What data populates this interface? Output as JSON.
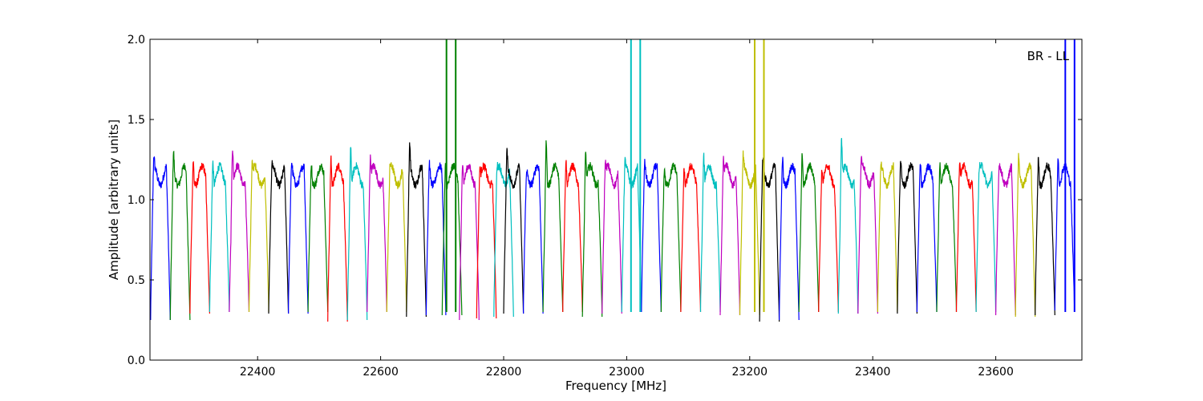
{
  "chart_data": {
    "type": "line",
    "title": "",
    "annotation": "BR - LL",
    "xlabel": "Frequency [MHz]",
    "ylabel": "Amplitude [arbitrary units]",
    "xlim": [
      22225,
      23740
    ],
    "ylim": [
      0.0,
      2.0
    ],
    "xticks": [
      22400,
      22600,
      22800,
      23000,
      23200,
      23400,
      23600
    ],
    "xtick_labels": [
      "22400",
      "22600",
      "22800",
      "23000",
      "23200",
      "23400",
      "23600"
    ],
    "yticks": [
      0.0,
      0.5,
      1.0,
      1.5,
      2.0
    ],
    "ytick_labels": [
      "0.0",
      "0.5",
      "1.0",
      "1.5",
      "2.0"
    ],
    "grid": false,
    "legend": "none",
    "color_cycle": [
      "#0000ff",
      "#008000",
      "#ff0000",
      "#00bfbf",
      "#bf00bf",
      "#bfbf00",
      "#000000"
    ],
    "passband_width_mhz": 32,
    "series": [
      {
        "start": 22226,
        "color": "#0000ff",
        "peak": 1.28,
        "floor": 0.25
      },
      {
        "start": 22258,
        "color": "#008000",
        "peak": 1.31,
        "floor": 0.25
      },
      {
        "start": 22290,
        "color": "#ff0000",
        "peak": 1.25,
        "floor": 0.29
      },
      {
        "start": 22322,
        "color": "#00bfbf",
        "peak": 1.24,
        "floor": 0.3
      },
      {
        "start": 22354,
        "color": "#bf00bf",
        "peak": 1.34,
        "floor": 0.3
      },
      {
        "start": 22386,
        "color": "#bfbf00",
        "peak": 1.24,
        "floor": 0.3
      },
      {
        "start": 22418,
        "color": "#000000",
        "peak": 1.23,
        "floor": 0.29
      },
      {
        "start": 22450,
        "color": "#0000ff",
        "peak": 1.24,
        "floor": 0.29
      },
      {
        "start": 22482,
        "color": "#008000",
        "peak": 1.23,
        "floor": 0.3
      },
      {
        "start": 22514,
        "color": "#ff0000",
        "peak": 1.27,
        "floor": 0.24
      },
      {
        "start": 22546,
        "color": "#00bfbf",
        "peak": 1.34,
        "floor": 0.25
      },
      {
        "start": 22578,
        "color": "#bf00bf",
        "peak": 1.27,
        "floor": 0.3
      },
      {
        "start": 22610,
        "color": "#bfbf00",
        "peak": 1.22,
        "floor": 0.3
      },
      {
        "start": 22642,
        "color": "#000000",
        "peak": 1.36,
        "floor": 0.27
      },
      {
        "start": 22674,
        "color": "#0000ff",
        "peak": 1.24,
        "floor": 0.28
      },
      {
        "start": 22700,
        "color": "#008000",
        "peak": 1.22,
        "floor": 0.28
      },
      {
        "start": 22728,
        "color": "#bf00bf",
        "peak": 1.25,
        "floor": 0.25
      },
      {
        "start": 22756,
        "color": "#ff0000",
        "peak": 1.21,
        "floor": 0.26
      },
      {
        "start": 22784,
        "color": "#00bfbf",
        "peak": 1.22,
        "floor": 0.27
      },
      {
        "start": 22800,
        "color": "#000000",
        "peak": 1.31,
        "floor": 0.29
      },
      {
        "start": 22832,
        "color": "#0000ff",
        "peak": 1.19,
        "floor": 0.29
      },
      {
        "start": 22864,
        "color": "#008000",
        "peak": 1.39,
        "floor": 0.3
      },
      {
        "start": 22896,
        "color": "#ff0000",
        "peak": 1.26,
        "floor": 0.3
      },
      {
        "start": 22928,
        "color": "#008000",
        "peak": 1.3,
        "floor": 0.27
      },
      {
        "start": 22960,
        "color": "#bf00bf",
        "peak": 1.24,
        "floor": 0.29
      },
      {
        "start": 22992,
        "color": "#00bfbf",
        "peak": 1.25,
        "floor": 0.3
      },
      {
        "start": 23024,
        "color": "#0000ff",
        "peak": 1.24,
        "floor": 0.3
      },
      {
        "start": 23056,
        "color": "#008000",
        "peak": 1.2,
        "floor": 0.3
      },
      {
        "start": 23088,
        "color": "#ff0000",
        "peak": 1.19,
        "floor": 0.3
      },
      {
        "start": 23120,
        "color": "#00bfbf",
        "peak": 1.28,
        "floor": 0.3
      },
      {
        "start": 23152,
        "color": "#bf00bf",
        "peak": 1.26,
        "floor": 0.28
      },
      {
        "start": 23184,
        "color": "#bfbf00",
        "peak": 1.29,
        "floor": 0.28
      },
      {
        "start": 23216,
        "color": "#000000",
        "peak": 1.27,
        "floor": 0.24
      },
      {
        "start": 23248,
        "color": "#0000ff",
        "peak": 1.27,
        "floor": 0.25
      },
      {
        "start": 23280,
        "color": "#008000",
        "peak": 1.31,
        "floor": 0.3
      },
      {
        "start": 23312,
        "color": "#ff0000",
        "peak": 1.19,
        "floor": 0.3
      },
      {
        "start": 23344,
        "color": "#00bfbf",
        "peak": 1.38,
        "floor": 0.29
      },
      {
        "start": 23376,
        "color": "#bf00bf",
        "peak": 1.26,
        "floor": 0.29
      },
      {
        "start": 23408,
        "color": "#bfbf00",
        "peak": 1.23,
        "floor": 0.3
      },
      {
        "start": 23440,
        "color": "#000000",
        "peak": 1.24,
        "floor": 0.29
      },
      {
        "start": 23472,
        "color": "#0000ff",
        "peak": 1.24,
        "floor": 0.3
      },
      {
        "start": 23504,
        "color": "#008000",
        "peak": 1.24,
        "floor": 0.3
      },
      {
        "start": 23536,
        "color": "#ff0000",
        "peak": 1.25,
        "floor": 0.3
      },
      {
        "start": 23568,
        "color": "#00bfbf",
        "peak": 1.22,
        "floor": 0.3
      },
      {
        "start": 23600,
        "color": "#bf00bf",
        "peak": 1.2,
        "floor": 0.28
      },
      {
        "start": 23632,
        "color": "#bfbf00",
        "peak": 1.29,
        "floor": 0.27
      },
      {
        "start": 23664,
        "color": "#000000",
        "peak": 1.27,
        "floor": 0.28
      },
      {
        "start": 23696,
        "color": "#0000ff",
        "peak": 1.27,
        "floor": 0.31
      }
    ],
    "rfi_spikes": [
      {
        "x": 22707,
        "color": "#008000"
      },
      {
        "x": 22722,
        "color": "#008000"
      },
      {
        "x": 23007,
        "color": "#00bfbf"
      },
      {
        "x": 23022,
        "color": "#00bfbf"
      },
      {
        "x": 23208,
        "color": "#bfbf00"
      },
      {
        "x": 23223,
        "color": "#bfbf00"
      },
      {
        "x": 23713,
        "color": "#0000ff"
      },
      {
        "x": 23728,
        "color": "#0000ff"
      }
    ]
  }
}
